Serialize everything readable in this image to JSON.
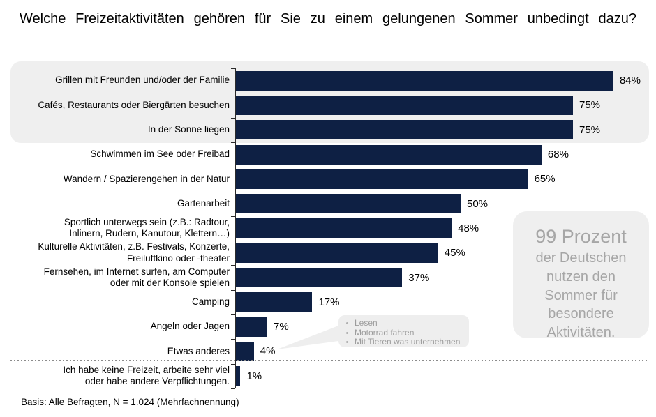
{
  "title": "Welche Freizeitaktivitäten gehören für Sie zu einem gelungenen Sommer unbedingt dazu?",
  "footer": "Basis: Alle Befragten, N = 1.024 (Mehrfachnennung)",
  "colors": {
    "bar": "#0e2044",
    "panel": "#efefef",
    "muted_text": "#a6a6a6",
    "dotted_line": "#8c8c8c"
  },
  "note_box": {
    "headline": "99 Prozent",
    "body": "der Deutschen nutzen den Sommer für besondere Aktivitäten."
  },
  "callout": {
    "items": [
      "Lesen",
      "Motorrad fahren",
      "Mit Tieren was unternehmen"
    ]
  },
  "chart_data": {
    "type": "bar",
    "orientation": "horizontal",
    "unit": "%",
    "categories": [
      "Grillen mit Freunden und/oder der Familie",
      "Cafés, Restaurants oder Biergärten besuchen",
      "In der Sonne liegen",
      "Schwimmen im See oder Freibad",
      "Wandern / Spazierengehen in der Natur",
      "Gartenarbeit",
      "Sportlich unterwegs sein (z.B.: Radtour,\nInlinern, Rudern, Kanutour, Klettern…)",
      "Kulturelle Aktivitäten, z.B. Festivals, Konzerte,\nFreiluftkino oder -theater",
      "Fernsehen, im Internet surfen, am Computer\noder mit der Konsole spielen",
      "Camping",
      "Angeln oder Jagen",
      "Etwas anderes",
      "Ich habe keine Freizeit, arbeite sehr viel\noder habe andere Verpflichtungen."
    ],
    "values": [
      84,
      75,
      75,
      68,
      65,
      50,
      48,
      45,
      37,
      17,
      7,
      4,
      1
    ],
    "xlim": [
      0,
      92
    ],
    "grid": false,
    "legend": false,
    "highlighted_top_rows": 3,
    "separator_before_last_row": true
  }
}
